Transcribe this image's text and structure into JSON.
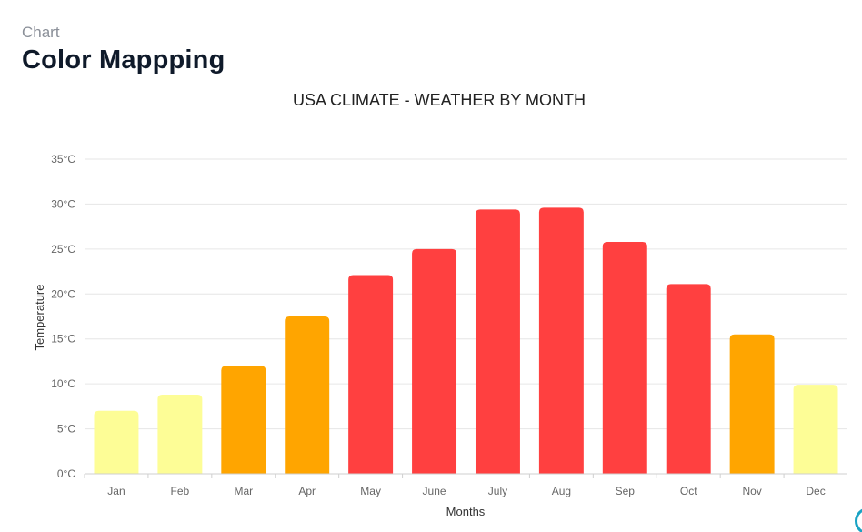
{
  "header": {
    "eyebrow": "Chart",
    "title": "Color Mappping"
  },
  "colors": {
    "cold": "#fdfd96",
    "warm": "#ffa500",
    "hot": "#ff4040",
    "gridline": "#e6e6e6",
    "axis_text": "#666666",
    "accent": "#1aa3c4"
  },
  "chart_data": {
    "type": "bar",
    "title": "USA CLIMATE - WEATHER BY MONTH",
    "xlabel": "Months",
    "ylabel": "Temperature",
    "categories": [
      "Jan",
      "Feb",
      "Mar",
      "Apr",
      "May",
      "June",
      "July",
      "Aug",
      "Sep",
      "Oct",
      "Nov",
      "Dec"
    ],
    "values": [
      7,
      8.8,
      12,
      17.5,
      22.1,
      25,
      29.4,
      29.6,
      25.8,
      21.1,
      15.5,
      9.9
    ],
    "color_bands": [
      "cold",
      "cold",
      "warm",
      "warm",
      "hot",
      "hot",
      "hot",
      "hot",
      "hot",
      "hot",
      "warm",
      "cold"
    ],
    "ylim": [
      0,
      35
    ],
    "yticks": [
      "0°C",
      "5°C",
      "10°C",
      "15°C",
      "20°C",
      "25°C",
      "30°C",
      "35°C"
    ],
    "grid": true
  }
}
